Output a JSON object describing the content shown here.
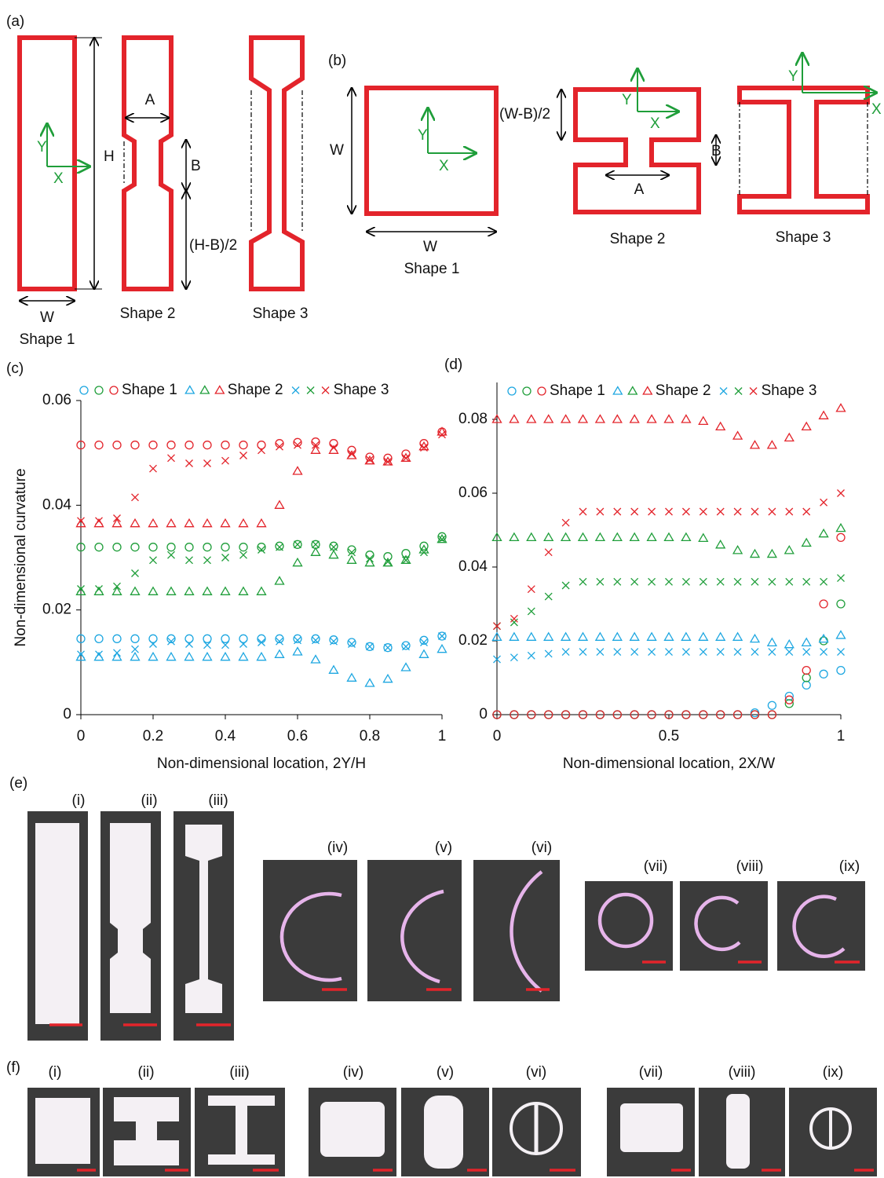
{
  "panel_a": {
    "label": "(a)",
    "shape_labels": [
      "Shape 1",
      "Shape 2",
      "Shape 3"
    ],
    "dims": [
      "H",
      "W",
      "A",
      "B",
      "(H-B)/2"
    ],
    "axes": [
      "X",
      "Y"
    ]
  },
  "panel_b": {
    "label": "(b)",
    "shape_labels": [
      "Shape 1",
      "Shape 2",
      "Shape 3"
    ],
    "dims": [
      "W",
      "W",
      "(W-B)/2",
      "A",
      "B"
    ],
    "axes": [
      "X",
      "Y",
      "X",
      "Y",
      "X",
      "Y"
    ]
  },
  "chart_data": [
    {
      "type": "scatter",
      "panel_label": "(c)",
      "x_label": "Non-dimensional location, 2Y/H",
      "y_label": "Non-dimensional curvature",
      "x": [
        0,
        0.05,
        0.1,
        0.15,
        0.2,
        0.25,
        0.3,
        0.35,
        0.4,
        0.45,
        0.5,
        0.55,
        0.6,
        0.65,
        0.7,
        0.75,
        0.8,
        0.85,
        0.9,
        0.95,
        1
      ],
      "xlim": [
        0,
        1
      ],
      "xticks": [
        0,
        0.2,
        0.4,
        0.6,
        0.8,
        1
      ],
      "ylim": [
        0,
        0.06
      ],
      "yticks": [
        0,
        0.02,
        0.04,
        0.06
      ],
      "series": [
        {
          "name": "Shape 1",
          "marker": "circle",
          "curves": [
            {
              "color": "#1ea7e1",
              "values": [
                0.0145,
                0.0145,
                0.0145,
                0.0145,
                0.0145,
                0.0145,
                0.0145,
                0.0145,
                0.0145,
                0.0145,
                0.0145,
                0.0145,
                0.0145,
                0.0145,
                0.0143,
                0.0138,
                0.013,
                0.0128,
                0.0132,
                0.0142,
                0.015
              ]
            },
            {
              "color": "#1f9e3a",
              "values": [
                0.032,
                0.032,
                0.032,
                0.032,
                0.032,
                0.032,
                0.032,
                0.032,
                0.032,
                0.032,
                0.032,
                0.0322,
                0.0325,
                0.0325,
                0.0322,
                0.0315,
                0.0305,
                0.0302,
                0.0308,
                0.0322,
                0.034
              ]
            },
            {
              "color": "#e3242b",
              "values": [
                0.0515,
                0.0515,
                0.0515,
                0.0515,
                0.0515,
                0.0515,
                0.0515,
                0.0515,
                0.0515,
                0.0515,
                0.0515,
                0.0518,
                0.052,
                0.0521,
                0.0518,
                0.0505,
                0.0492,
                0.049,
                0.0498,
                0.0518,
                0.054
              ]
            }
          ]
        },
        {
          "name": "Shape 2",
          "marker": "triangle",
          "curves": [
            {
              "color": "#1ea7e1",
              "values": [
                0.011,
                0.011,
                0.011,
                0.011,
                0.011,
                0.011,
                0.011,
                0.011,
                0.011,
                0.011,
                0.011,
                0.0115,
                0.012,
                0.0105,
                0.0085,
                0.007,
                0.006,
                0.0068,
                0.009,
                0.0115,
                0.0125
              ]
            },
            {
              "color": "#1f9e3a",
              "values": [
                0.0235,
                0.0235,
                0.0235,
                0.0235,
                0.0235,
                0.0235,
                0.0235,
                0.0235,
                0.0235,
                0.0235,
                0.0235,
                0.0255,
                0.029,
                0.031,
                0.0305,
                0.0295,
                0.029,
                0.029,
                0.0295,
                0.0315,
                0.0335
              ]
            },
            {
              "color": "#e3242b",
              "values": [
                0.0365,
                0.0365,
                0.0365,
                0.0365,
                0.0365,
                0.0365,
                0.0365,
                0.0365,
                0.0365,
                0.0365,
                0.0365,
                0.04,
                0.0465,
                0.0505,
                0.0505,
                0.0495,
                0.0485,
                0.0483,
                0.049,
                0.0512,
                0.054
              ]
            }
          ]
        },
        {
          "name": "Shape 3",
          "marker": "cross",
          "curves": [
            {
              "color": "#1ea7e1",
              "values": [
                0.0115,
                0.0115,
                0.0118,
                0.0125,
                0.0135,
                0.014,
                0.0135,
                0.0133,
                0.0133,
                0.0135,
                0.0138,
                0.014,
                0.0142,
                0.0142,
                0.014,
                0.0135,
                0.013,
                0.0128,
                0.013,
                0.0138,
                0.015
              ]
            },
            {
              "color": "#1f9e3a",
              "values": [
                0.024,
                0.024,
                0.0245,
                0.027,
                0.0295,
                0.0305,
                0.0295,
                0.0295,
                0.03,
                0.0305,
                0.0315,
                0.032,
                0.0325,
                0.0325,
                0.032,
                0.031,
                0.0298,
                0.0292,
                0.0295,
                0.031,
                0.0335
              ]
            },
            {
              "color": "#e3242b",
              "values": [
                0.037,
                0.037,
                0.0375,
                0.0415,
                0.047,
                0.049,
                0.048,
                0.048,
                0.0485,
                0.0495,
                0.0505,
                0.0512,
                0.0515,
                0.0515,
                0.051,
                0.0498,
                0.0487,
                0.0483,
                0.049,
                0.051,
                0.0535
              ]
            }
          ]
        }
      ]
    },
    {
      "type": "scatter",
      "panel_label": "(d)",
      "x_label": "Non-dimensional location, 2X/W",
      "x": [
        0,
        0.05,
        0.1,
        0.15,
        0.2,
        0.25,
        0.3,
        0.35,
        0.4,
        0.45,
        0.5,
        0.55,
        0.6,
        0.65,
        0.7,
        0.75,
        0.8,
        0.85,
        0.9,
        0.95,
        1
      ],
      "xlim": [
        0,
        1
      ],
      "xticks": [
        0,
        0.5,
        1
      ],
      "ylim": [
        0,
        0.09
      ],
      "yticks": [
        0,
        0.02,
        0.04,
        0.06,
        0.08
      ],
      "series": [
        {
          "name": "Shape 1",
          "marker": "circle",
          "curves": [
            {
              "color": "#1ea7e1",
              "values": [
                0,
                0,
                0,
                0,
                0,
                0,
                0,
                0,
                0,
                0,
                0,
                0,
                0,
                0,
                0,
                0.0005,
                0.0025,
                0.005,
                0.008,
                0.011,
                0.012
              ]
            },
            {
              "color": "#1f9e3a",
              "values": [
                0,
                0,
                0,
                0,
                0,
                0,
                0,
                0,
                0,
                0,
                0,
                0,
                0,
                0,
                0,
                0,
                0,
                0.003,
                0.01,
                0.02,
                0.03
              ]
            },
            {
              "color": "#e3242b",
              "values": [
                0,
                0,
                0,
                0,
                0,
                0,
                0,
                0,
                0,
                0,
                0,
                0,
                0,
                0,
                0,
                0,
                0,
                0.004,
                0.012,
                0.03,
                0.048
              ]
            }
          ]
        },
        {
          "name": "Shape 2",
          "marker": "triangle",
          "curves": [
            {
              "color": "#1ea7e1",
              "values": [
                0.021,
                0.021,
                0.021,
                0.021,
                0.021,
                0.021,
                0.021,
                0.021,
                0.021,
                0.021,
                0.021,
                0.021,
                0.021,
                0.021,
                0.021,
                0.0205,
                0.0195,
                0.019,
                0.0195,
                0.0205,
                0.0215
              ]
            },
            {
              "color": "#1f9e3a",
              "values": [
                0.048,
                0.048,
                0.048,
                0.048,
                0.048,
                0.048,
                0.048,
                0.048,
                0.048,
                0.048,
                0.048,
                0.048,
                0.0478,
                0.046,
                0.0445,
                0.0435,
                0.0435,
                0.0445,
                0.0465,
                0.049,
                0.0505
              ]
            },
            {
              "color": "#e3242b",
              "values": [
                0.08,
                0.08,
                0.08,
                0.08,
                0.08,
                0.08,
                0.08,
                0.08,
                0.08,
                0.08,
                0.08,
                0.08,
                0.0795,
                0.078,
                0.0755,
                0.073,
                0.073,
                0.075,
                0.078,
                0.081,
                0.083
              ]
            }
          ]
        },
        {
          "name": "Shape 3",
          "marker": "cross",
          "curves": [
            {
              "color": "#1ea7e1",
              "values": [
                0.015,
                0.0155,
                0.016,
                0.0165,
                0.017,
                0.017,
                0.017,
                0.017,
                0.017,
                0.017,
                0.017,
                0.017,
                0.017,
                0.017,
                0.017,
                0.017,
                0.017,
                0.017,
                0.017,
                0.017,
                0.017
              ]
            },
            {
              "color": "#1f9e3a",
              "values": [
                0.024,
                0.025,
                0.028,
                0.032,
                0.035,
                0.036,
                0.036,
                0.036,
                0.036,
                0.036,
                0.036,
                0.036,
                0.036,
                0.036,
                0.036,
                0.036,
                0.036,
                0.036,
                0.036,
                0.036,
                0.037
              ]
            },
            {
              "color": "#e3242b",
              "values": [
                0.024,
                0.026,
                0.034,
                0.044,
                0.052,
                0.055,
                0.055,
                0.055,
                0.055,
                0.055,
                0.055,
                0.055,
                0.055,
                0.055,
                0.055,
                0.055,
                0.055,
                0.055,
                0.055,
                0.0575,
                0.06
              ]
            }
          ]
        }
      ]
    }
  ],
  "panel_e": {
    "label": "(e)",
    "photos": [
      "(i)",
      "(ii)",
      "(iii)",
      "(iv)",
      "(v)",
      "(vi)",
      "(vii)",
      "(viii)",
      "(ix)"
    ]
  },
  "panel_f": {
    "label": "(f)",
    "photos": [
      "(i)",
      "(ii)",
      "(iii)",
      "(iv)",
      "(v)",
      "(vi)",
      "(vii)",
      "(viii)",
      "(ix)"
    ]
  }
}
